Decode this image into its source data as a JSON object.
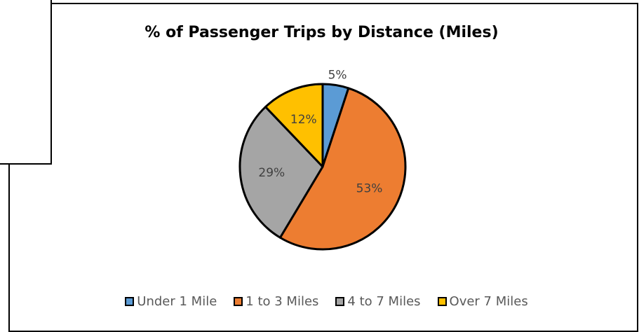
{
  "chart_data": {
    "type": "pie",
    "title": "% of Passenger Trips by Distance (Miles)",
    "categories": [
      "Under 1 Mile",
      "1 to 3 Miles",
      "4 to 7 Miles",
      "Over 7 Miles"
    ],
    "values": [
      5,
      53,
      29,
      12
    ],
    "labels": [
      "5%",
      "53%",
      "29%",
      "12%"
    ],
    "colors": [
      "#5b9bd5",
      "#ed7d31",
      "#a5a5a5",
      "#ffc000"
    ],
    "legend_position": "bottom"
  },
  "legend": {
    "items": [
      {
        "label": "Under 1 Mile",
        "color": "#5b9bd5"
      },
      {
        "label": "1 to 3 Miles",
        "color": "#ed7d31"
      },
      {
        "label": "4 to 7 Miles",
        "color": "#a5a5a5"
      },
      {
        "label": "Over 7 Miles",
        "color": "#ffc000"
      }
    ]
  }
}
